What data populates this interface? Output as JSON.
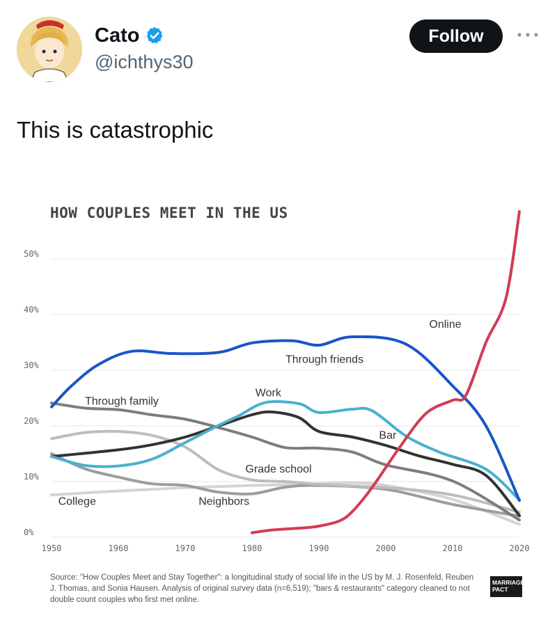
{
  "tweet": {
    "author_name": "Cato",
    "handle": "@ichthys30",
    "follow_label": "Follow",
    "text": "This is catastrophic",
    "verified_color": "#1d9bf0"
  },
  "chart_data": {
    "type": "line",
    "title": "HOW COUPLES MEET IN THE US",
    "xlim": [
      1950,
      2020
    ],
    "ylim": [
      0,
      50
    ],
    "x_ticks": [
      1950,
      1960,
      1970,
      1980,
      1990,
      2000,
      2010,
      2020
    ],
    "y_ticks": [
      {
        "value": 0,
        "label": "0%"
      },
      {
        "value": 10,
        "label": "10%"
      },
      {
        "value": 20,
        "label": "20%"
      },
      {
        "value": 30,
        "label": "30%"
      },
      {
        "value": 40,
        "label": "40%"
      },
      {
        "value": 50,
        "label": "50%"
      }
    ],
    "grid": true,
    "series": [
      {
        "name": "College",
        "color": "#d4d4d4",
        "label_at": [
          1951,
          5.8
        ],
        "points": [
          [
            1950,
            7.6
          ],
          [
            1960,
            8.3
          ],
          [
            1970,
            8.9
          ],
          [
            1980,
            9.3
          ],
          [
            1990,
            9.6
          ],
          [
            1995,
            9.8
          ],
          [
            2000,
            9.3
          ],
          [
            2010,
            6.8
          ],
          [
            2020,
            2.3
          ]
        ]
      },
      {
        "name": "Neighbors",
        "color": "#9c9c9c",
        "label_at": [
          1972,
          5.8
        ],
        "points": [
          [
            1950,
            15
          ],
          [
            1955,
            12.3
          ],
          [
            1960,
            10.8
          ],
          [
            1965,
            9.6
          ],
          [
            1970,
            9.3
          ],
          [
            1975,
            8.1
          ],
          [
            1980,
            7.8
          ],
          [
            1985,
            9
          ],
          [
            1990,
            9.3
          ],
          [
            2000,
            8.6
          ],
          [
            2010,
            5.9
          ],
          [
            2020,
            3.8
          ]
        ]
      },
      {
        "name": "Grade school",
        "color": "#bdbdbd",
        "label_at": [
          1979,
          11.6
        ],
        "points": [
          [
            1950,
            17.7
          ],
          [
            1955,
            18.8
          ],
          [
            1960,
            19
          ],
          [
            1965,
            18.3
          ],
          [
            1970,
            16.2
          ],
          [
            1975,
            12.1
          ],
          [
            1980,
            10.3
          ],
          [
            1985,
            10
          ],
          [
            1990,
            9.5
          ],
          [
            2000,
            8.9
          ],
          [
            2010,
            7.6
          ],
          [
            2020,
            4.5
          ]
        ]
      },
      {
        "name": "Through family",
        "color": "#7d7d7d",
        "label_at": [
          1955,
          23.8
        ],
        "points": [
          [
            1950,
            24.1
          ],
          [
            1955,
            23.2
          ],
          [
            1960,
            22.9
          ],
          [
            1965,
            22
          ],
          [
            1970,
            21.2
          ],
          [
            1975,
            19.7
          ],
          [
            1980,
            18
          ],
          [
            1985,
            16.1
          ],
          [
            1990,
            16
          ],
          [
            1995,
            15.3
          ],
          [
            2000,
            13
          ],
          [
            2010,
            10.1
          ],
          [
            2020,
            3.1
          ]
        ]
      },
      {
        "name": "Bar",
        "color": "#323232",
        "label_at": [
          1999,
          17.7
        ],
        "points": [
          [
            1950,
            14.5
          ],
          [
            1960,
            15.7
          ],
          [
            1965,
            16.6
          ],
          [
            1970,
            18
          ],
          [
            1975,
            20
          ],
          [
            1980,
            22
          ],
          [
            1983,
            22.5
          ],
          [
            1987,
            21.5
          ],
          [
            1990,
            19
          ],
          [
            1995,
            18
          ],
          [
            2000,
            16.5
          ],
          [
            2005,
            14.6
          ],
          [
            2010,
            13.1
          ],
          [
            2015,
            11.1
          ],
          [
            2020,
            3.9
          ]
        ]
      },
      {
        "name": "Work",
        "color": "#4ab0cf",
        "label_at": [
          1980.5,
          25.3
        ],
        "points": [
          [
            1950,
            14.5
          ],
          [
            1955,
            12.9
          ],
          [
            1960,
            12.8
          ],
          [
            1965,
            14
          ],
          [
            1970,
            17
          ],
          [
            1975,
            20.1
          ],
          [
            1978,
            21.8
          ],
          [
            1982,
            24.2
          ],
          [
            1987,
            24
          ],
          [
            1990,
            22.4
          ],
          [
            1995,
            23
          ],
          [
            1998,
            22.7
          ],
          [
            2003,
            18.2
          ],
          [
            2008,
            15.3
          ],
          [
            2015,
            12.2
          ],
          [
            2020,
            6.7
          ]
        ]
      },
      {
        "name": "Through friends",
        "color": "#1a55c8",
        "label_at": [
          1985,
          31.3
        ],
        "points": [
          [
            1950,
            23.4
          ],
          [
            1953,
            27.2
          ],
          [
            1957,
            31
          ],
          [
            1962,
            33.4
          ],
          [
            1968,
            33
          ],
          [
            1975,
            33.2
          ],
          [
            1980,
            34.9
          ],
          [
            1986,
            35.3
          ],
          [
            1990,
            34.5
          ],
          [
            1995,
            36
          ],
          [
            2003,
            34.7
          ],
          [
            2010,
            27.2
          ],
          [
            2015,
            20
          ],
          [
            2020,
            6.6
          ]
        ]
      },
      {
        "name": "Online",
        "color": "#d23b55",
        "label_at": [
          2006.5,
          37.6
        ],
        "points": [
          [
            1980,
            0.8
          ],
          [
            1983,
            1.3
          ],
          [
            1988,
            1.7
          ],
          [
            1990,
            2
          ],
          [
            1993,
            2.9
          ],
          [
            1995,
            4.6
          ],
          [
            1998,
            9
          ],
          [
            2002,
            16
          ],
          [
            2006,
            22.2
          ],
          [
            2010,
            24.6
          ],
          [
            2012,
            25.5
          ],
          [
            2015,
            35
          ],
          [
            2018,
            43
          ],
          [
            2020,
            58.5
          ]
        ]
      }
    ],
    "source": "Source: \"How Couples Meet and Stay Together\": a longitudinal study of social life in the US by M. J. Rosenfeld, Reuben J. Thomas, and Sonia Hausen. Analysis of original survey data (n=6,519); \"bars & restaurants\" category cleaned to not double count couples who first met online.",
    "brand": "MARRIAGE PACT"
  }
}
